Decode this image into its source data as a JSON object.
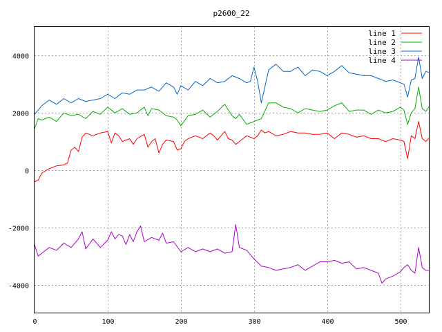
{
  "chart_data": {
    "type": "line",
    "title": "p2600_22",
    "xlabel": "",
    "ylabel": "",
    "xlim": [
      0,
      540
    ],
    "ylim": [
      -5000,
      5000
    ],
    "xticks": [
      0,
      100,
      200,
      300,
      400,
      500
    ],
    "yticks": [
      -4000,
      -2000,
      0,
      2000,
      4000
    ],
    "grid": true,
    "legend_position": "top-right",
    "series": [
      {
        "name": "line 1",
        "color": "#ff0000",
        "x": [
          0,
          5,
          10,
          20,
          30,
          40,
          45,
          50,
          55,
          60,
          65,
          70,
          80,
          90,
          100,
          105,
          110,
          115,
          120,
          125,
          130,
          135,
          140,
          150,
          155,
          160,
          165,
          170,
          175,
          180,
          190,
          195,
          200,
          205,
          210,
          220,
          230,
          240,
          245,
          250,
          255,
          260,
          265,
          270,
          275,
          280,
          290,
          300,
          305,
          310,
          315,
          320,
          330,
          340,
          350,
          360,
          370,
          380,
          390,
          400,
          410,
          420,
          430,
          440,
          450,
          460,
          470,
          480,
          490,
          500,
          505,
          510,
          515,
          520,
          525,
          530,
          535,
          540
        ],
        "y": [
          -400,
          -350,
          -100,
          50,
          150,
          180,
          250,
          700,
          800,
          650,
          1150,
          1300,
          1200,
          1300,
          1350,
          950,
          1300,
          1200,
          1000,
          1050,
          1100,
          900,
          1100,
          1250,
          800,
          1000,
          1100,
          600,
          900,
          1050,
          1000,
          700,
          750,
          1000,
          1100,
          1200,
          1100,
          1300,
          1200,
          1050,
          1200,
          1350,
          1100,
          1050,
          900,
          1000,
          1200,
          1100,
          1200,
          1400,
          1300,
          1350,
          1200,
          1250,
          1350,
          1300,
          1300,
          1250,
          1250,
          1300,
          1100,
          1300,
          1250,
          1150,
          1200,
          1100,
          1100,
          1000,
          1100,
          1050,
          1000,
          400,
          1200,
          1100,
          1700,
          1100,
          1000,
          1150
        ]
      },
      {
        "name": "line 2",
        "color": "#00b000",
        "x": [
          0,
          5,
          10,
          20,
          30,
          40,
          50,
          60,
          70,
          80,
          90,
          100,
          110,
          120,
          130,
          140,
          150,
          155,
          160,
          170,
          180,
          190,
          195,
          200,
          210,
          220,
          230,
          240,
          250,
          260,
          265,
          270,
          275,
          280,
          290,
          300,
          310,
          320,
          330,
          340,
          350,
          360,
          370,
          380,
          390,
          400,
          410,
          420,
          430,
          440,
          450,
          460,
          470,
          480,
          490,
          500,
          505,
          510,
          515,
          520,
          525,
          530,
          535,
          540
        ],
        "y": [
          1450,
          1800,
          1750,
          1850,
          1700,
          2000,
          1900,
          1950,
          1800,
          2050,
          1950,
          2200,
          2000,
          2150,
          1950,
          2000,
          2200,
          1900,
          2150,
          2100,
          1900,
          1850,
          1750,
          1550,
          1900,
          1950,
          2100,
          1850,
          2050,
          2300,
          2100,
          1900,
          1800,
          1950,
          1600,
          1700,
          1800,
          2350,
          2350,
          2200,
          2150,
          2000,
          2150,
          2100,
          2050,
          2100,
          2250,
          2350,
          2050,
          2100,
          2100,
          1950,
          2100,
          2000,
          2050,
          2200,
          2100,
          1600,
          2000,
          2150,
          2900,
          2150,
          2050,
          2250
        ]
      },
      {
        "name": "line 3",
        "color": "#0066cc",
        "x": [
          0,
          5,
          10,
          20,
          30,
          40,
          50,
          60,
          70,
          80,
          90,
          100,
          110,
          120,
          130,
          140,
          150,
          160,
          170,
          180,
          190,
          195,
          200,
          210,
          220,
          230,
          240,
          250,
          260,
          270,
          280,
          290,
          295,
          300,
          305,
          310,
          320,
          330,
          340,
          350,
          360,
          370,
          380,
          390,
          400,
          410,
          420,
          430,
          440,
          450,
          460,
          470,
          480,
          490,
          500,
          505,
          510,
          515,
          520,
          525,
          530,
          535,
          540
        ],
        "y": [
          1950,
          2100,
          2250,
          2450,
          2300,
          2500,
          2350,
          2500,
          2400,
          2450,
          2500,
          2650,
          2500,
          2700,
          2650,
          2800,
          2800,
          2900,
          2750,
          3050,
          2900,
          2650,
          2950,
          2800,
          3100,
          2950,
          3200,
          3050,
          3100,
          3300,
          3200,
          3050,
          3100,
          3600,
          3100,
          2350,
          3500,
          3700,
          3450,
          3450,
          3600,
          3300,
          3500,
          3450,
          3300,
          3450,
          3650,
          3400,
          3350,
          3300,
          3300,
          3200,
          3100,
          3150,
          3050,
          3000,
          2550,
          3150,
          3200,
          3950,
          3200,
          3450,
          3400
        ]
      },
      {
        "name": "line 4",
        "color": "#aa00cc",
        "x": [
          0,
          5,
          10,
          20,
          30,
          40,
          50,
          60,
          65,
          70,
          80,
          90,
          100,
          105,
          110,
          115,
          120,
          125,
          130,
          135,
          140,
          145,
          150,
          160,
          170,
          175,
          180,
          190,
          200,
          210,
          220,
          230,
          240,
          250,
          260,
          270,
          275,
          280,
          290,
          300,
          310,
          320,
          330,
          340,
          350,
          360,
          370,
          380,
          390,
          400,
          410,
          420,
          430,
          440,
          450,
          460,
          470,
          475,
          480,
          490,
          500,
          505,
          510,
          515,
          520,
          525,
          530,
          535,
          540
        ],
        "y": [
          -2600,
          -3000,
          -2900,
          -2700,
          -2800,
          -2550,
          -2700,
          -2400,
          -2150,
          -2750,
          -2400,
          -2700,
          -2450,
          -2150,
          -2400,
          -2250,
          -2300,
          -2600,
          -2250,
          -2500,
          -2150,
          -1950,
          -2500,
          -2350,
          -2450,
          -2200,
          -2550,
          -2500,
          -2850,
          -2700,
          -2850,
          -2750,
          -2850,
          -2750,
          -2900,
          -2850,
          -1900,
          -2700,
          -2800,
          -3100,
          -3350,
          -3400,
          -3500,
          -3450,
          -3400,
          -3300,
          -3500,
          -3350,
          -3200,
          -3200,
          -3150,
          -3250,
          -3200,
          -3450,
          -3400,
          -3500,
          -3600,
          -3950,
          -3800,
          -3700,
          -3550,
          -3400,
          -3300,
          -3500,
          -3600,
          -2700,
          -3400,
          -3500,
          -3500
        ]
      }
    ]
  }
}
